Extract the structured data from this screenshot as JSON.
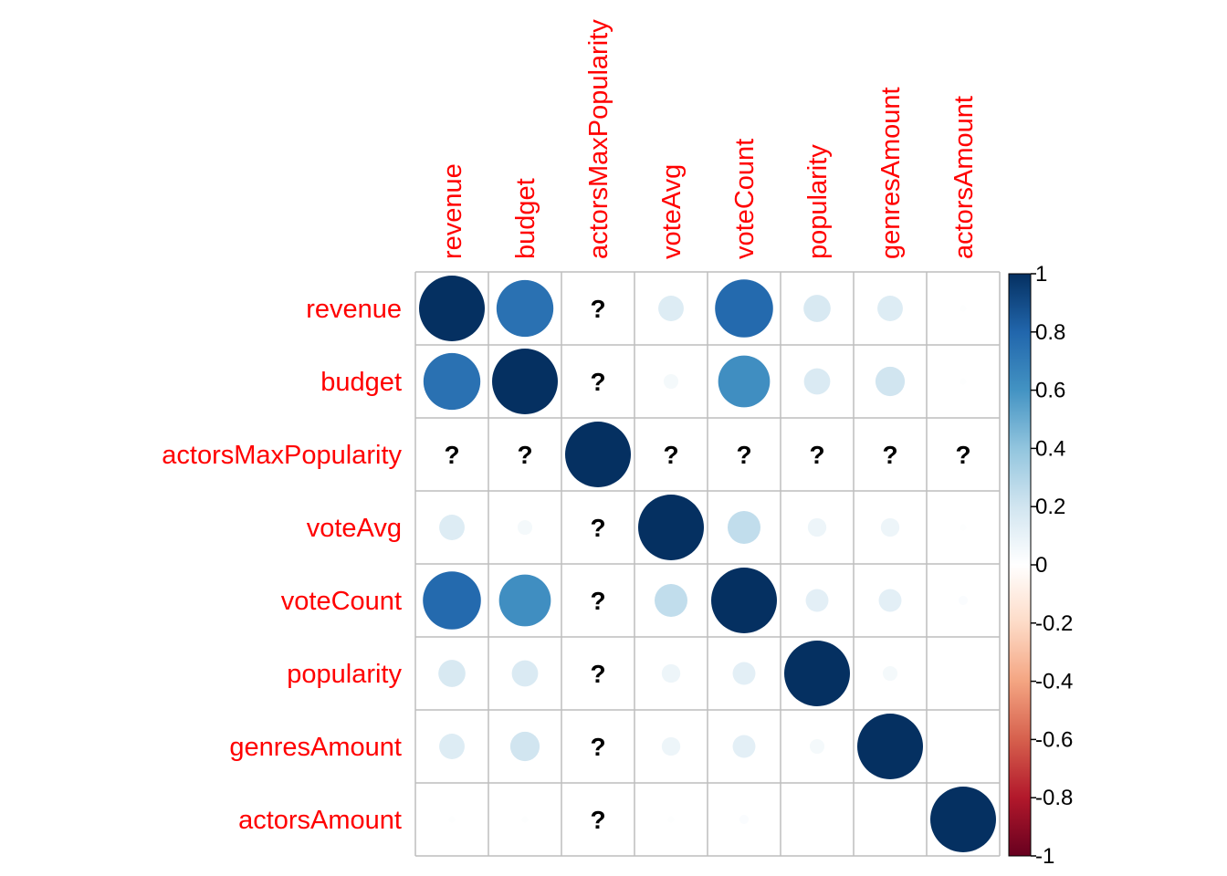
{
  "chart_data": {
    "type": "heatmap",
    "style": "corrplot-circle",
    "variables": [
      "revenue",
      "budget",
      "actorsMaxPopularity",
      "voteAvg",
      "voteCount",
      "popularity",
      "genresAmount",
      "actorsAmount"
    ],
    "matrix": [
      [
        1.0,
        0.75,
        null,
        0.15,
        0.78,
        0.17,
        0.15,
        0.01
      ],
      [
        0.75,
        1.0,
        null,
        0.05,
        0.62,
        0.16,
        0.2,
        0.01
      ],
      [
        null,
        null,
        1.0,
        null,
        null,
        null,
        null,
        null
      ],
      [
        0.15,
        0.05,
        null,
        1.0,
        0.25,
        0.08,
        0.08,
        0.01
      ],
      [
        0.78,
        0.62,
        null,
        0.25,
        1.0,
        0.12,
        0.12,
        0.02
      ],
      [
        0.17,
        0.16,
        null,
        0.08,
        0.12,
        1.0,
        0.05,
        0.0
      ],
      [
        0.15,
        0.2,
        null,
        0.08,
        0.12,
        0.05,
        1.0,
        0.0
      ],
      [
        0.01,
        0.01,
        null,
        0.01,
        0.02,
        0.0,
        0.0,
        1.0
      ]
    ],
    "missing_label": "?",
    "legend": {
      "ticks": [
        "1",
        "0.8",
        "0.6",
        "0.4",
        "0.2",
        "0",
        "-0.2",
        "-0.4",
        "-0.6",
        "-0.8",
        "-1"
      ],
      "range": [
        -1,
        1
      ],
      "placement": "right"
    },
    "colors": {
      "label": "#ff0000",
      "grid": "#bebebe",
      "scale": [
        "#67001f",
        "#b2182b",
        "#d6604d",
        "#f4a582",
        "#fddbc7",
        "#ffffff",
        "#d1e5f0",
        "#92c5de",
        "#4393c3",
        "#2166ac",
        "#053061"
      ]
    }
  }
}
